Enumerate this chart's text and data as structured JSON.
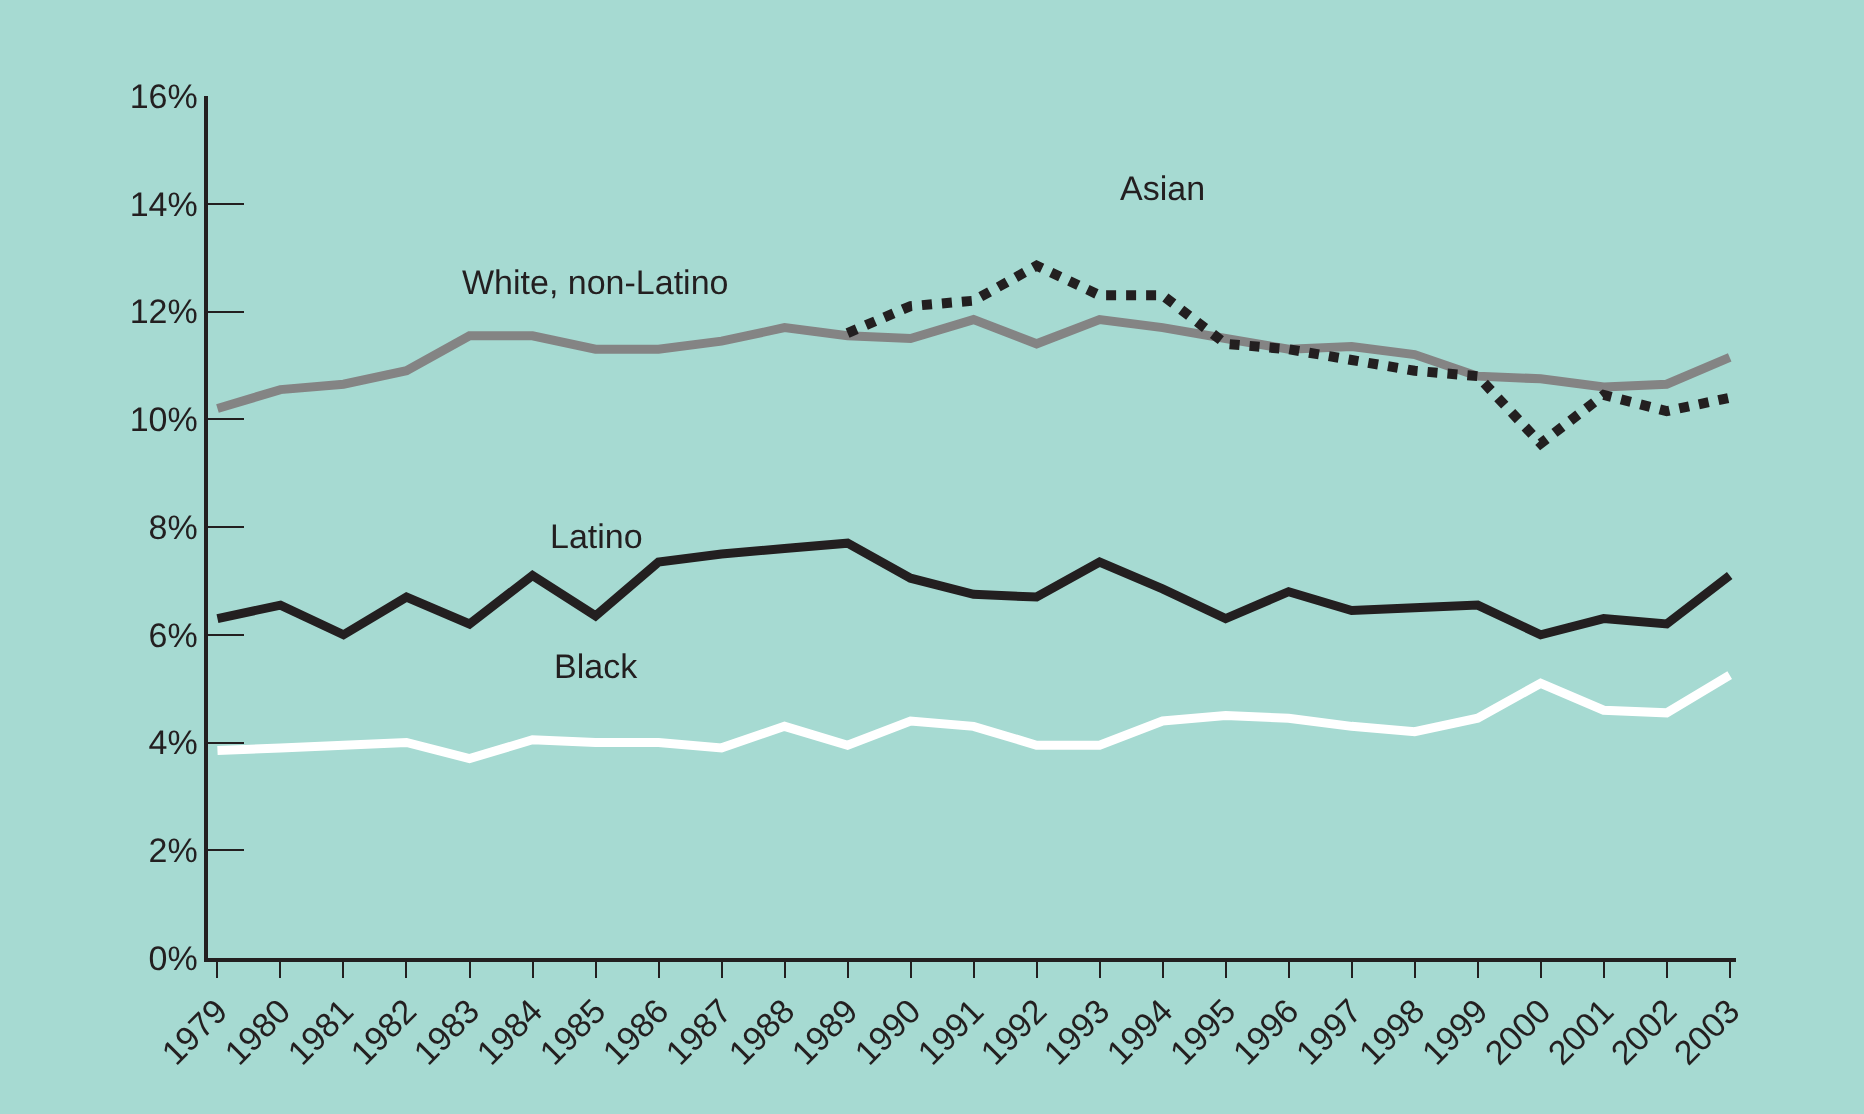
{
  "chart_data": {
    "type": "line",
    "categories": [
      "1979",
      "1980",
      "1981",
      "1982",
      "1983",
      "1984",
      "1985",
      "1986",
      "1987",
      "1988",
      "1989",
      "1990",
      "1991",
      "1992",
      "1993",
      "1994",
      "1995",
      "1996",
      "1997",
      "1998",
      "1999",
      "2000",
      "2001",
      "2002",
      "2003"
    ],
    "series": [
      {
        "name": "White, non-Latino",
        "color": "#848484",
        "line_style": "solid",
        "values": [
          10.2,
          10.55,
          10.65,
          10.9,
          11.55,
          11.55,
          11.3,
          11.3,
          11.45,
          11.7,
          11.55,
          11.5,
          11.85,
          11.4,
          11.85,
          11.7,
          11.5,
          11.3,
          11.35,
          11.2,
          10.8,
          10.75,
          10.6,
          10.65,
          11.15
        ]
      },
      {
        "name": "Asian",
        "color": "#231f20",
        "line_style": "dotted",
        "values": [
          null,
          null,
          null,
          null,
          null,
          null,
          null,
          null,
          null,
          null,
          11.6,
          12.1,
          12.2,
          12.85,
          12.3,
          12.3,
          11.4,
          11.3,
          11.1,
          10.9,
          10.8,
          9.55,
          10.45,
          10.15,
          10.4
        ]
      },
      {
        "name": "Latino",
        "color": "#231f20",
        "line_style": "solid",
        "values": [
          6.3,
          6.55,
          6.0,
          6.7,
          6.2,
          7.1,
          6.35,
          7.35,
          7.5,
          7.6,
          7.7,
          7.05,
          6.75,
          6.7,
          7.35,
          6.85,
          6.3,
          6.8,
          6.45,
          6.5,
          6.55,
          6.0,
          6.3,
          6.2,
          7.1
        ]
      },
      {
        "name": "Black",
        "color": "#ffffff",
        "line_style": "solid",
        "values": [
          3.85,
          3.9,
          3.95,
          4.0,
          3.7,
          4.05,
          4.0,
          4.0,
          3.9,
          4.3,
          3.95,
          4.4,
          4.3,
          3.95,
          3.95,
          4.4,
          4.5,
          4.45,
          4.3,
          4.2,
          4.45,
          5.1,
          4.6,
          4.55,
          5.25
        ]
      }
    ],
    "ylim": [
      0,
      16
    ],
    "yticks": [
      {
        "value": 0,
        "label": "0%"
      },
      {
        "value": 2,
        "label": "2%"
      },
      {
        "value": 4,
        "label": "4%"
      },
      {
        "value": 6,
        "label": "6%"
      },
      {
        "value": 8,
        "label": "8%"
      },
      {
        "value": 10,
        "label": "10%"
      },
      {
        "value": 12,
        "label": "12%"
      },
      {
        "value": 14,
        "label": "14%"
      },
      {
        "value": 16,
        "label": "16%"
      }
    ],
    "grid": false,
    "legend": false,
    "marker": "none"
  }
}
